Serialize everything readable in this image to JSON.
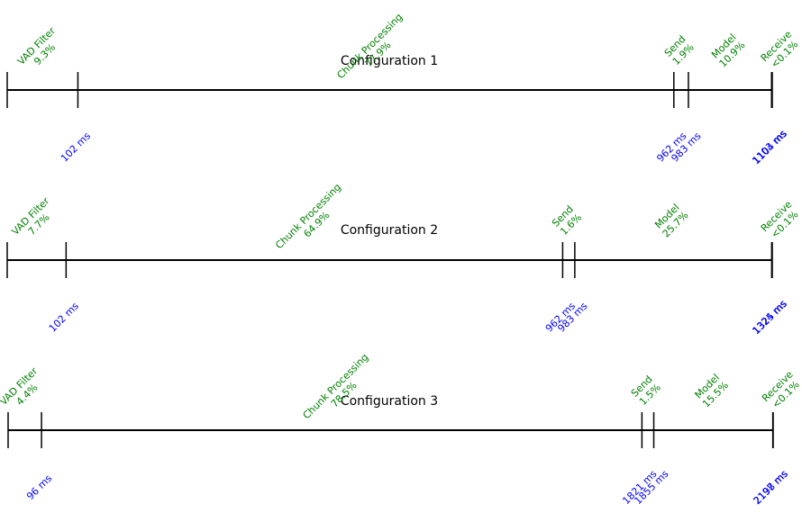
{
  "colors": {
    "axis": "#000000",
    "segment_label": "#008000",
    "time_label": "#0000ff"
  },
  "chart_data": [
    {
      "type": "timeline",
      "title": "Configuration 1",
      "unit": "ms",
      "ticks": [
        0,
        102,
        962,
        983,
        1103,
        1104
      ],
      "tick_labels": [
        "102 ms",
        "962 ms",
        "983 ms",
        "1103 ms",
        "1104 ms"
      ],
      "segments": [
        {
          "name": "VAD Filter",
          "share": "9.3%",
          "start": 0,
          "end": 102
        },
        {
          "name": "Chunk Processing",
          "share": "77.9%",
          "start": 102,
          "end": 962
        },
        {
          "name": "Send",
          "share": "1.9%",
          "start": 962,
          "end": 983
        },
        {
          "name": "Model",
          "share": "10.9%",
          "start": 983,
          "end": 1103
        },
        {
          "name": "Receive",
          "share": "<0.1%",
          "start": 1103,
          "end": 1104
        }
      ]
    },
    {
      "type": "timeline",
      "title": "Configuration 2",
      "unit": "ms",
      "ticks": [
        0,
        102,
        962,
        983,
        1324,
        1325
      ],
      "tick_labels": [
        "102 ms",
        "962 ms",
        "983 ms",
        "1324 ms",
        "1325 ms"
      ],
      "segments": [
        {
          "name": "VAD Filter",
          "share": "7.7%",
          "start": 0,
          "end": 102
        },
        {
          "name": "Chunk Processing",
          "share": "64.9%",
          "start": 102,
          "end": 962
        },
        {
          "name": "Send",
          "share": "1.6%",
          "start": 962,
          "end": 983
        },
        {
          "name": "Model",
          "share": "25.7%",
          "start": 983,
          "end": 1324
        },
        {
          "name": "Receive",
          "share": "<0.1%",
          "start": 1324,
          "end": 1325
        }
      ]
    },
    {
      "type": "timeline",
      "title": "Configuration 3",
      "unit": "ms",
      "ticks": [
        0,
        96,
        1821,
        1855,
        2197,
        2198
      ],
      "tick_labels": [
        "96 ms",
        "1821 ms",
        "1855 ms",
        "2197 ms",
        "2198 ms"
      ],
      "segments": [
        {
          "name": "VAD Filter",
          "share": "4.4%",
          "start": 0,
          "end": 96
        },
        {
          "name": "Chunk Processing",
          "share": "78.5%",
          "start": 96,
          "end": 1821
        },
        {
          "name": "Send",
          "share": "1.5%",
          "start": 1821,
          "end": 1855
        },
        {
          "name": "Model",
          "share": "15.5%",
          "start": 1855,
          "end": 2197
        },
        {
          "name": "Receive",
          "share": "<0.1%",
          "start": 2197,
          "end": 2198
        }
      ]
    }
  ]
}
